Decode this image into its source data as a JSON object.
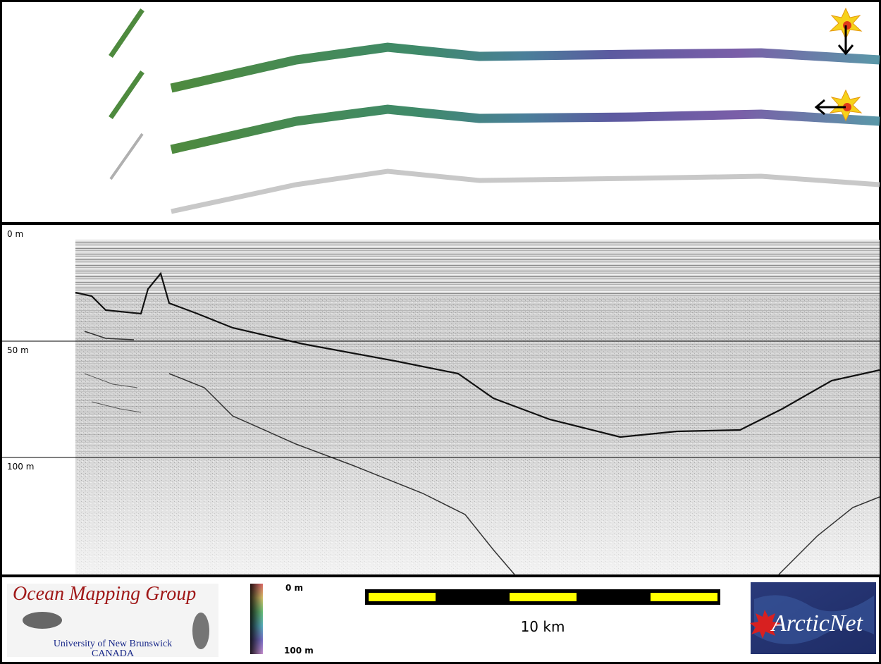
{
  "profile": {
    "depth_labels": [
      "0 m",
      "50 m",
      "100 m"
    ]
  },
  "legend": {
    "colorbar_labels": [
      "0 m",
      "100 m"
    ],
    "scale_bar_label": "10 km"
  },
  "logos": {
    "omg": {
      "title": "Ocean Mapping Group",
      "university": "University of New Brunswick",
      "country": "CANADA"
    },
    "arcticnet": "ArcticNet"
  }
}
